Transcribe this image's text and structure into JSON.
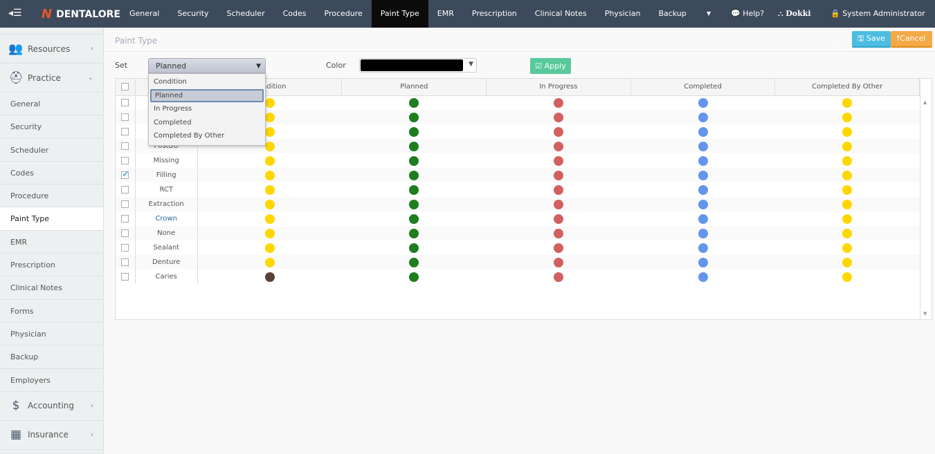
{
  "header": {
    "logo": "DENTALORE",
    "nav": [
      "General",
      "Security",
      "Scheduler",
      "Codes",
      "Procedure",
      "Paint Type",
      "EMR",
      "Prescription",
      "Clinical Notes",
      "Physician",
      "Backup"
    ],
    "active_nav": "Paint Type",
    "help": "Help?",
    "org": "Dokki",
    "user": "System Administrator"
  },
  "sidebar": {
    "groups_top": [
      {
        "label": "Resources",
        "icon": "users-icon"
      },
      {
        "label": "Practice",
        "icon": "medkit-icon"
      }
    ],
    "items": [
      "General",
      "Security",
      "Scheduler",
      "Codes",
      "Procedure",
      "Paint Type",
      "EMR",
      "Prescription",
      "Clinical Notes",
      "Forms",
      "Physician",
      "Backup",
      "Employers"
    ],
    "active": "Paint Type",
    "groups_bottom": [
      {
        "label": "Accounting",
        "icon": "dollar-icon"
      },
      {
        "label": "Insurance",
        "icon": "building-icon"
      }
    ]
  },
  "page": {
    "title": "Paint Type",
    "save": "Save",
    "cancel": "Cancel",
    "set_label": "Set",
    "color_label": "Color",
    "apply": "Apply",
    "selected_color": "#000000",
    "set_value": "Planned",
    "set_options": [
      "Condition",
      "Planned",
      "In Progress",
      "Completed",
      "Completed By Other"
    ]
  },
  "table": {
    "columns": [
      "Condition",
      "Planned",
      "In Progress",
      "Completed",
      "Completed By Other"
    ],
    "colors": {
      "yellow": "#ffd700",
      "green": "#1e7e1e",
      "red": "#d35f5f",
      "blue": "#6495ed",
      "brown": "#5b4033"
    },
    "rows": [
      {
        "name": "",
        "checked": false,
        "colors": [
          "yellow",
          "green",
          "red",
          "blue",
          "yellow"
        ]
      },
      {
        "name": "",
        "checked": false,
        "colors": [
          "yellow",
          "green",
          "red",
          "blue",
          "yellow"
        ]
      },
      {
        "name": "",
        "checked": false,
        "colors": [
          "yellow",
          "green",
          "red",
          "blue",
          "yellow"
        ]
      },
      {
        "name": "PostBU",
        "checked": false,
        "colors": [
          "yellow",
          "green",
          "red",
          "blue",
          "yellow"
        ]
      },
      {
        "name": "Missing",
        "checked": false,
        "colors": [
          "yellow",
          "green",
          "red",
          "blue",
          "yellow"
        ]
      },
      {
        "name": "Filling",
        "checked": true,
        "colors": [
          "yellow",
          "green",
          "red",
          "blue",
          "yellow"
        ]
      },
      {
        "name": "RCT",
        "checked": false,
        "colors": [
          "yellow",
          "green",
          "red",
          "blue",
          "yellow"
        ]
      },
      {
        "name": "Extraction",
        "checked": false,
        "colors": [
          "yellow",
          "green",
          "red",
          "blue",
          "yellow"
        ]
      },
      {
        "name": "Crown",
        "checked": false,
        "colors": [
          "yellow",
          "green",
          "red",
          "blue",
          "yellow"
        ]
      },
      {
        "name": "None",
        "checked": false,
        "colors": [
          "yellow",
          "green",
          "red",
          "blue",
          "yellow"
        ]
      },
      {
        "name": "Sealant",
        "checked": false,
        "colors": [
          "yellow",
          "green",
          "red",
          "blue",
          "yellow"
        ]
      },
      {
        "name": "Denture",
        "checked": false,
        "colors": [
          "yellow",
          "green",
          "red",
          "blue",
          "yellow"
        ]
      },
      {
        "name": "Caries",
        "checked": false,
        "colors": [
          "brown",
          "green",
          "red",
          "blue",
          "yellow"
        ]
      }
    ]
  }
}
